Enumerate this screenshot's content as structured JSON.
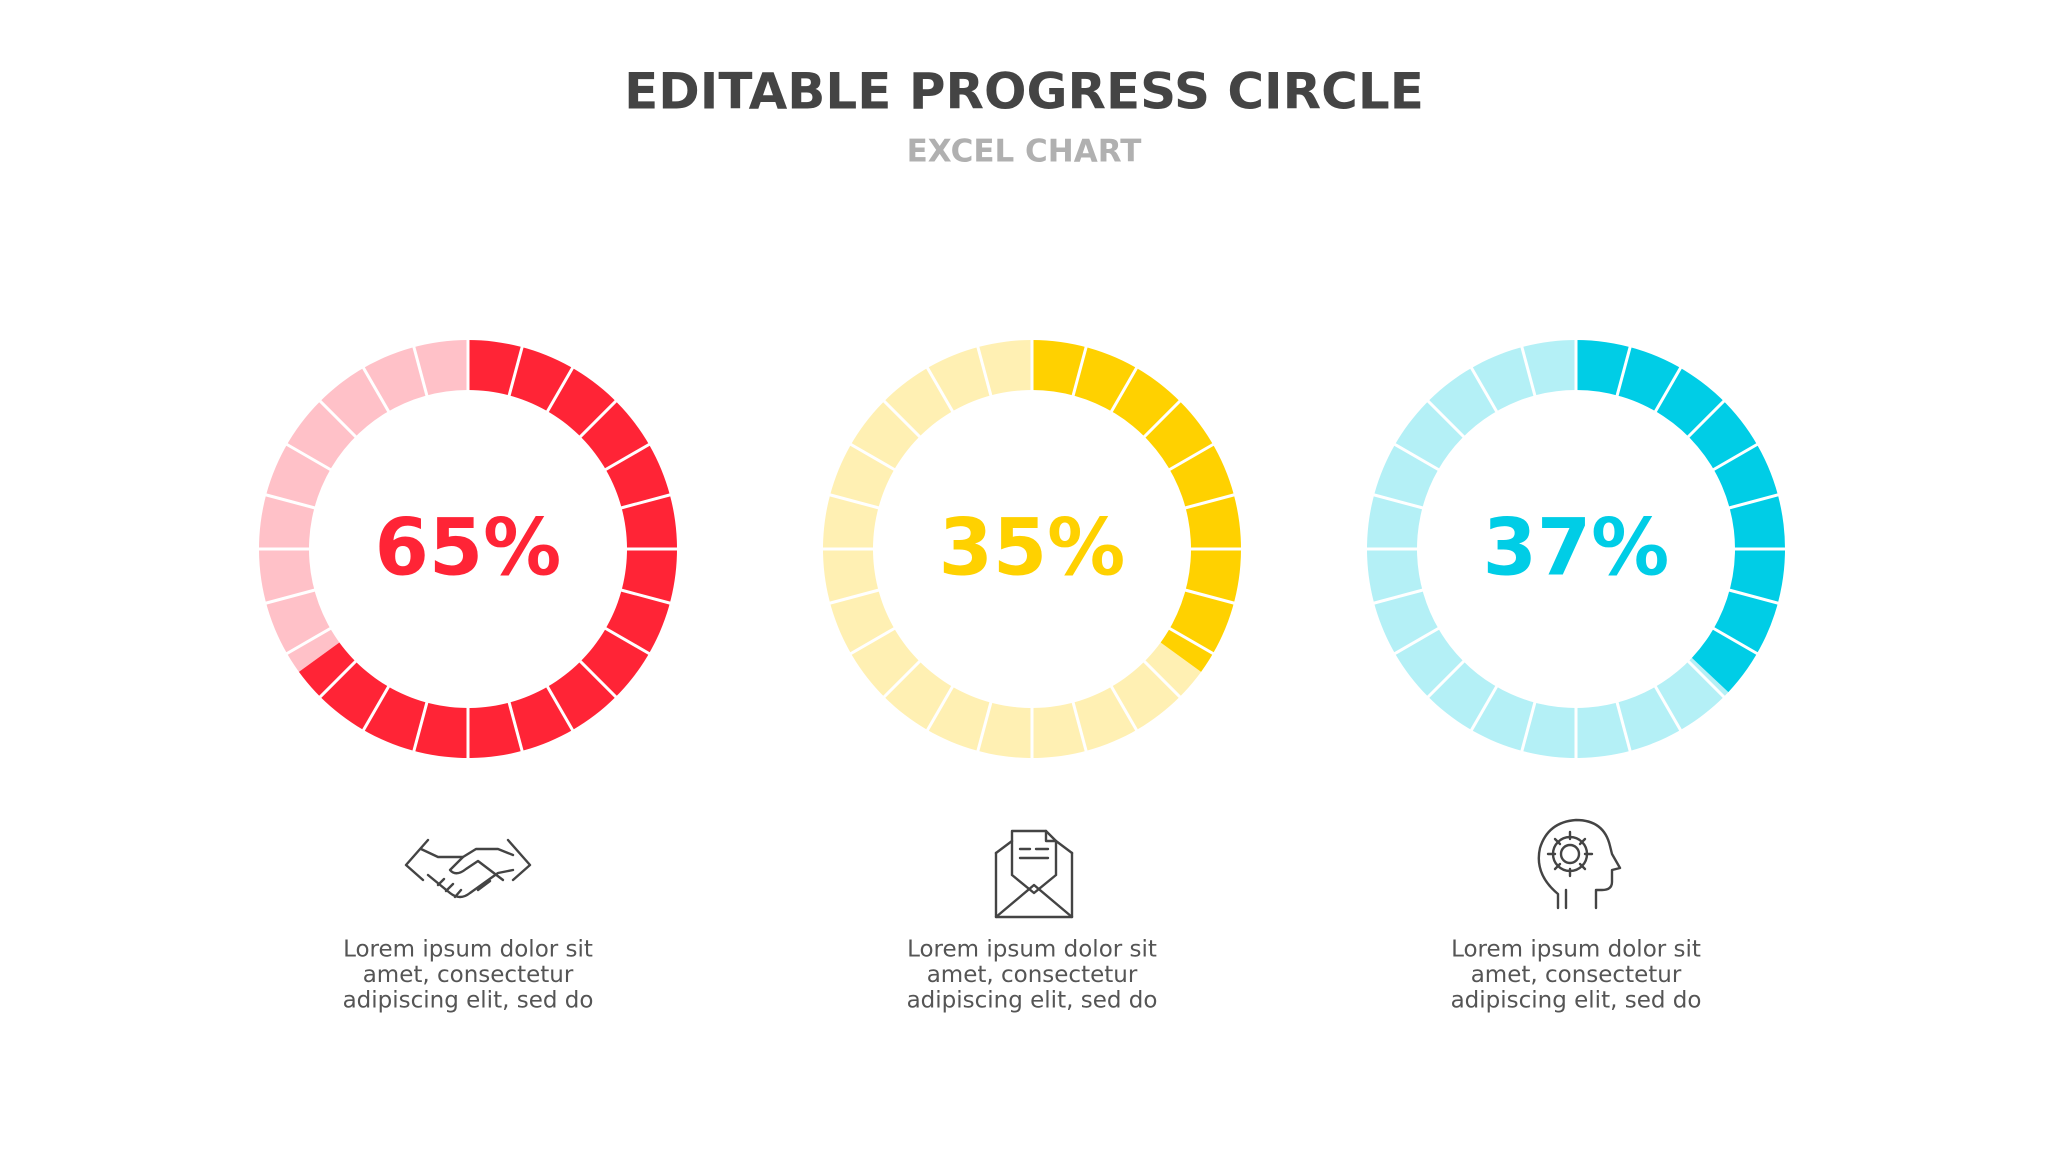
{
  "title": "EDITABLE PROGRESS CIRCLE",
  "subtitle": "EXCEL CHART",
  "chart_data": [
    {
      "type": "donut",
      "values": [
        65
      ],
      "value_labels": [
        "65%"
      ],
      "color": "#ff2436",
      "track_color": "#ffc1c8",
      "ylim": [
        0,
        100
      ],
      "description": [
        "Lorem ipsum dolor sit",
        "amet, consectetur",
        "adipiscing elit, sed do"
      ]
    },
    {
      "type": "donut",
      "values": [
        35
      ],
      "value_labels": [
        "35%"
      ],
      "color": "#ffd100",
      "track_color": "#fff0b3",
      "ylim": [
        0,
        100
      ],
      "description": [
        "Lorem ipsum dolor sit",
        "amet, consectetur",
        "adipiscing elit, sed do"
      ]
    },
    {
      "type": "donut",
      "values": [
        37
      ],
      "value_labels": [
        "37%"
      ],
      "color": "#00cde6",
      "track_color": "#b4f0f6",
      "ylim": [
        0,
        100
      ],
      "description": [
        "Lorem ipsum dolor sit",
        "amet, consectetur",
        "adipiscing elit, sed do"
      ]
    }
  ]
}
